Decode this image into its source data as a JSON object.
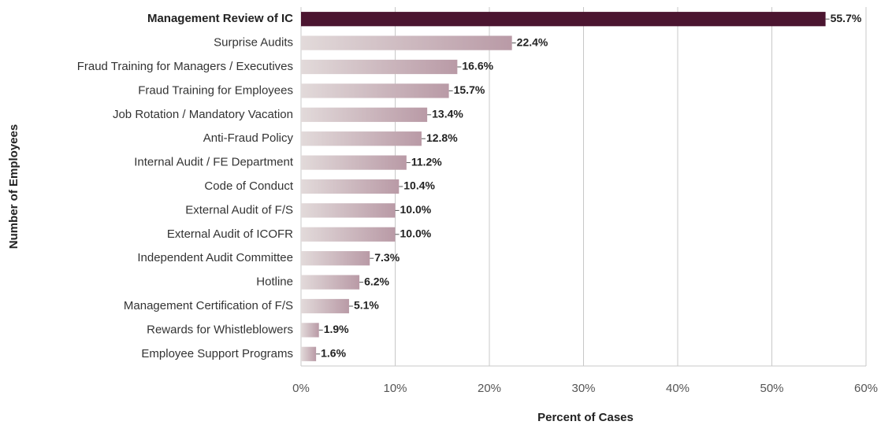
{
  "chart_data": {
    "type": "bar",
    "orientation": "horizontal",
    "x_label": "Percent of Cases",
    "y_label": "Number of Employees",
    "categories": [
      "Management Review of IC",
      "Surprise Audits",
      "Fraud Training for Managers / Executives",
      "Fraud Training for Employees",
      "Job Rotation / Mandatory Vacation",
      "Anti-Fraud Policy",
      "Internal Audit / FE Department",
      "Code of Conduct",
      "External Audit of F/S",
      "External Audit of ICOFR",
      "Independent Audit Committee",
      "Hotline",
      "Management Certification of F/S",
      "Rewards for Whistleblowers",
      "Employee Support Programs"
    ],
    "values": [
      55.7,
      22.4,
      16.6,
      15.7,
      13.4,
      12.8,
      11.2,
      10.4,
      10.0,
      10.0,
      7.3,
      6.2,
      5.1,
      1.9,
      1.6
    ],
    "value_labels": [
      "55.7%",
      "22.4%",
      "16.6%",
      "15.7%",
      "13.4%",
      "12.8%",
      "11.2%",
      "10.4%",
      "10.0%",
      "10.0%",
      "7.3%",
      "6.2%",
      "5.1%",
      "1.9%",
      "1.6%"
    ],
    "color": "#b99aa6",
    "highlight_color": "#4b1530",
    "highlight_index": 0,
    "xlim": [
      0,
      60
    ],
    "xticks": [
      {
        "value": 0,
        "label": "0%"
      },
      {
        "value": 10,
        "label": "10%"
      },
      {
        "value": 20,
        "label": "20%"
      },
      {
        "value": 30,
        "label": "30%"
      },
      {
        "value": 40,
        "label": "40%"
      },
      {
        "value": 50,
        "label": "50%"
      },
      {
        "value": 60,
        "label": "60%"
      }
    ],
    "grid": true
  }
}
